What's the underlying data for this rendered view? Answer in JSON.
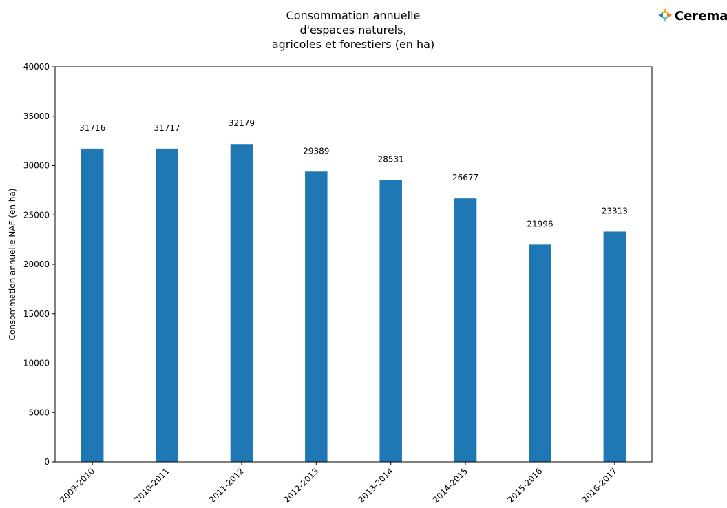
{
  "chart_data": {
    "type": "bar",
    "title": "Consommation annuelle\nd'espaces naturels,\nagricoles et forestiers (en ha)",
    "xlabel": "",
    "ylabel": "Consommation annuelle NAF (en ha)",
    "categories": [
      "2009-2010",
      "2010-2011",
      "2011-2012",
      "2012-2013",
      "2013-2014",
      "2014-2015",
      "2015-2016",
      "2016-2017"
    ],
    "values": [
      31716,
      31717,
      32179,
      29389,
      28531,
      26677,
      21996,
      23313
    ],
    "data_labels": [
      "31716",
      "31717",
      "32179",
      "29389",
      "28531",
      "26677",
      "21996",
      "23313"
    ],
    "ylim": [
      0,
      40000
    ],
    "yticks": [
      0,
      5000,
      10000,
      15000,
      20000,
      25000,
      30000,
      35000,
      40000
    ],
    "ytick_labels": [
      "0",
      "5000",
      "10000",
      "15000",
      "20000",
      "25000",
      "30000",
      "35000",
      "40000"
    ],
    "grid": false,
    "bar_color": "#1f77b4"
  },
  "logo": {
    "text": "Cerema",
    "text_color": "#f07c1c",
    "icon": "cerema-cross-icon",
    "icon_colors": [
      "#f7b500",
      "#f07c1c",
      "#6cc0c8",
      "#2f7fba"
    ]
  }
}
